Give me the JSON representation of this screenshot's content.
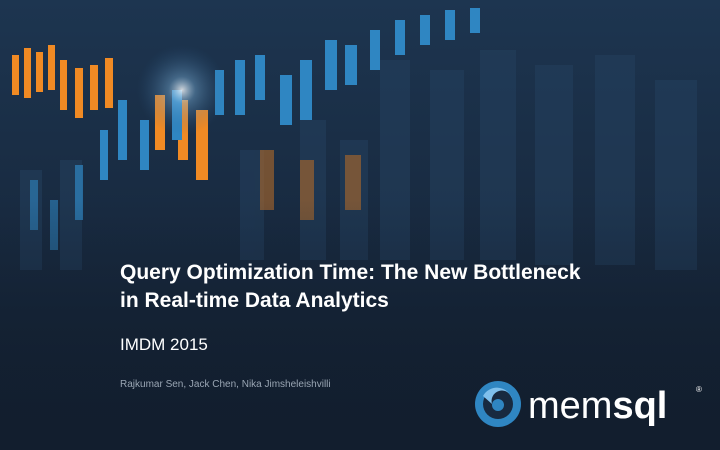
{
  "slide": {
    "title_lines": [
      "Query Optimization Time: The New Bottleneck",
      "in Real-time Data Analytics"
    ],
    "subtitle": "IMDM 2015",
    "authors": "Rajkumar Sen, Jack Chen, Nika Jimsheleishvilli",
    "logo": {
      "light": "mem",
      "bold": "sql",
      "mark": "®"
    }
  }
}
